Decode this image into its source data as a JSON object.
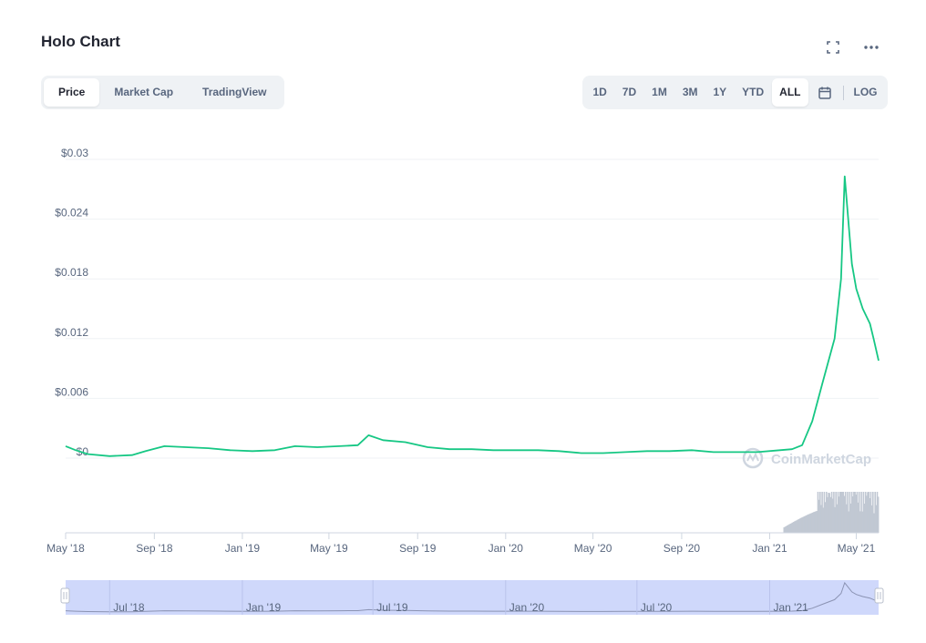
{
  "header": {
    "title": "Holo Chart",
    "icons": [
      "fullscreen-icon",
      "more-icon"
    ]
  },
  "tabs": [
    {
      "label": "Price",
      "active": true
    },
    {
      "label": "Market Cap",
      "active": false
    },
    {
      "label": "TradingView",
      "active": false
    }
  ],
  "ranges": [
    {
      "label": "1D",
      "active": false
    },
    {
      "label": "7D",
      "active": false
    },
    {
      "label": "1M",
      "active": false
    },
    {
      "label": "3M",
      "active": false
    },
    {
      "label": "1Y",
      "active": false
    },
    {
      "label": "YTD",
      "active": false
    },
    {
      "label": "ALL",
      "active": true
    }
  ],
  "calendar_icon": "calendar-icon",
  "log_label": "LOG",
  "watermark": "CoinMarketCap",
  "colors": {
    "line": "#16c784",
    "volume": "#c1c8d3",
    "navigator_fill": "#cfd8fb",
    "navigator_line": "#8b93b3",
    "grid": "#eff2f5"
  },
  "chart_data": {
    "type": "line",
    "ylim": [
      0,
      0.03
    ],
    "y_ticks": [
      "$0",
      "$0.006",
      "$0.012",
      "$0.018",
      "$0.024",
      "$0.03"
    ],
    "x_ticks": [
      "May '18",
      "Sep '18",
      "Jan '19",
      "May '19",
      "Sep '19",
      "Jan '20",
      "May '20",
      "Sep '20",
      "Jan '21",
      "May '21"
    ],
    "series": [
      {
        "x": [
          "2018-05-01",
          "2018-05-15",
          "2018-06-01",
          "2018-07-01",
          "2018-08-01",
          "2018-08-20",
          "2018-09-15",
          "2018-10-15",
          "2018-11-15",
          "2018-12-15",
          "2019-01-15",
          "2019-02-15",
          "2019-03-15",
          "2019-04-15",
          "2019-05-15",
          "2019-06-10",
          "2019-06-25",
          "2019-07-15",
          "2019-08-15",
          "2019-09-15",
          "2019-10-15",
          "2019-11-15",
          "2019-12-15",
          "2020-01-15",
          "2020-02-15",
          "2020-03-15",
          "2020-04-15",
          "2020-05-15",
          "2020-06-15",
          "2020-07-15",
          "2020-08-15",
          "2020-09-15",
          "2020-10-15",
          "2020-11-15",
          "2020-12-15",
          "2021-01-15",
          "2021-02-01",
          "2021-02-15",
          "2021-03-01",
          "2021-03-15",
          "2021-04-01",
          "2021-04-10",
          "2021-04-15",
          "2021-04-25",
          "2021-05-01",
          "2021-05-10",
          "2021-05-20",
          "2021-05-25",
          "2021-06-01"
        ],
        "y": [
          0.0012,
          0.0008,
          0.0004,
          0.0002,
          0.0003,
          0.0007,
          0.0012,
          0.0011,
          0.001,
          0.0008,
          0.0007,
          0.0008,
          0.0012,
          0.0011,
          0.0012,
          0.0013,
          0.0023,
          0.0018,
          0.0016,
          0.0011,
          0.0009,
          0.0009,
          0.0008,
          0.0008,
          0.0008,
          0.0007,
          0.0005,
          0.0005,
          0.0006,
          0.0007,
          0.0007,
          0.0008,
          0.0006,
          0.0006,
          0.0006,
          0.0008,
          0.0009,
          0.0013,
          0.0037,
          0.0075,
          0.012,
          0.018,
          0.0283,
          0.0195,
          0.017,
          0.015,
          0.0135,
          0.012,
          0.0098
        ]
      }
    ],
    "navigator_ticks": [
      "Jul '18",
      "Jan '19",
      "Jul '19",
      "Jan '20",
      "Jul '20",
      "Jan '21"
    ]
  }
}
